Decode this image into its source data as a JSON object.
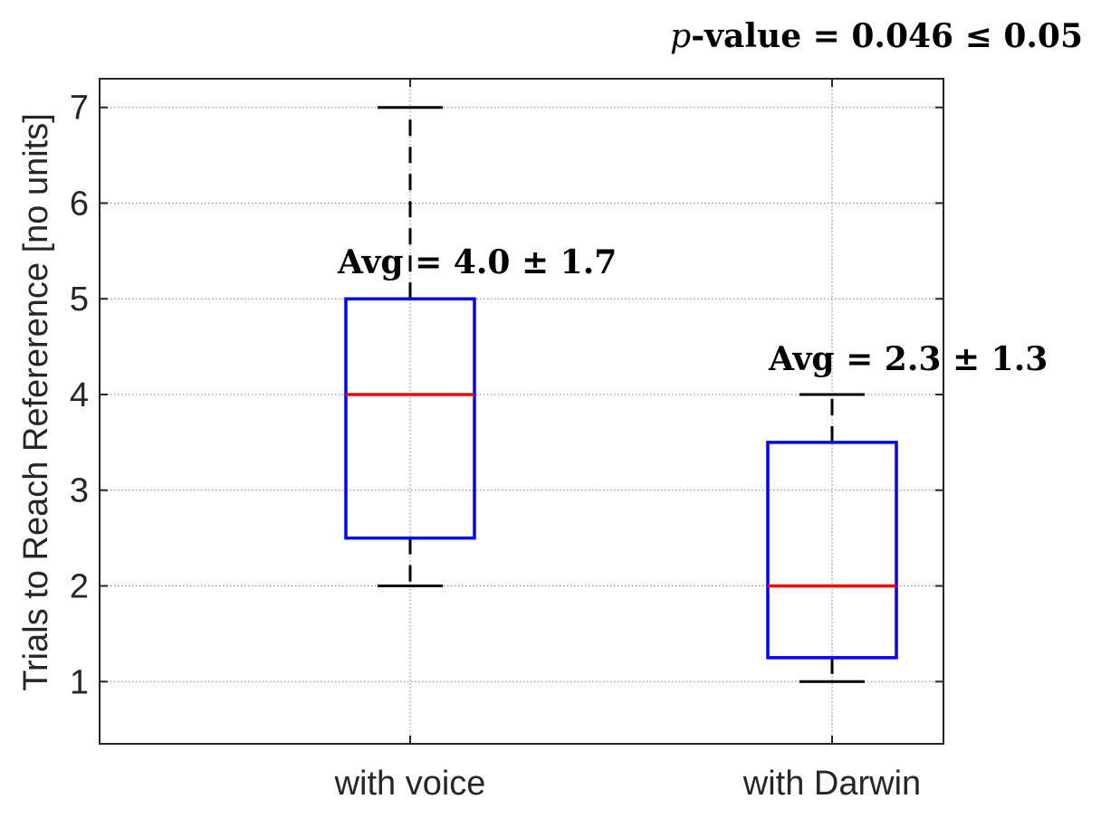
{
  "chart_data": {
    "type": "box",
    "title": "",
    "xlabel": "",
    "ylabel": "Trials to Reach Refererence [no units]",
    "categories": [
      "with voice",
      "with Darwin"
    ],
    "ylim": [
      0.35,
      7.3
    ],
    "yticks": [
      1,
      2,
      3,
      4,
      5,
      6,
      7
    ],
    "grid": true,
    "boxes": [
      {
        "category": "with voice",
        "whisker_low": 2,
        "q1": 2.5,
        "median": 4,
        "q3": 5,
        "whisker_high": 7
      },
      {
        "category": "with Darwin",
        "whisker_low": 1,
        "q1": 1.25,
        "median": 2,
        "q3": 3.5,
        "whisker_high": 4
      }
    ],
    "annotations": [
      {
        "text": "Avg = 4.0 ± 1.7",
        "category": "with voice",
        "y": 5.4
      },
      {
        "text": "Avg = 2.3 ± 1.3",
        "category": "with Darwin",
        "y": 4.4
      }
    ],
    "pvalue_label": {
      "italic_part": "p",
      "rest": "-value = 0.046 ≤ 0.05"
    },
    "colors": {
      "box": "#0000ff",
      "median": "#ff0000",
      "whisker": "#000000",
      "grid": "#7f7f7f",
      "axis": "#262626"
    }
  }
}
